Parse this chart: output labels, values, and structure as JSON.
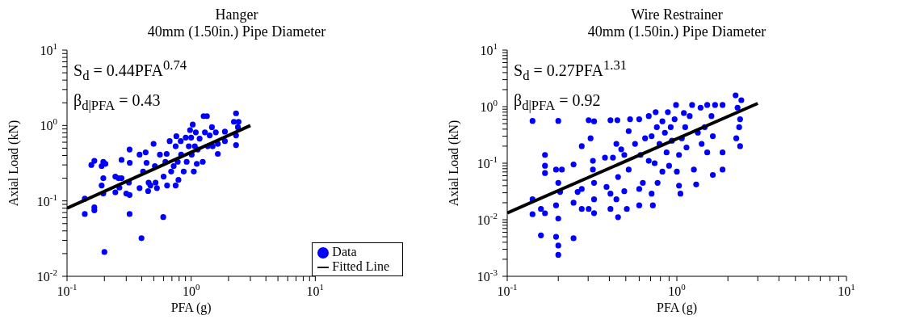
{
  "chart_data": [
    {
      "type": "scatter",
      "title": "Hanger",
      "subtitle": "40mm (1.50in.) Pipe Diameter",
      "xlabel": "PFA (g)",
      "ylabel": "Axial Load (kN)",
      "log": "xy",
      "grid": false,
      "legend": "bottom right",
      "annotations": [
        "S$_{d}$ = 0.44PFA$^{0.74}$",
        "β$_{d|PFA}$ = 0.43"
      ],
      "xlim": [
        0.1,
        10
      ],
      "ylim": [
        0.01,
        10
      ],
      "xticks": [
        {
          "value": 0.1,
          "label": "10$^{-1}$"
        },
        {
          "value": 0.2,
          "label": null
        },
        {
          "value": 0.3,
          "label": null
        },
        {
          "value": 0.4,
          "label": null
        },
        {
          "value": 0.5,
          "label": null
        },
        {
          "value": 0.6,
          "label": null
        },
        {
          "value": 0.7,
          "label": null
        },
        {
          "value": 0.8,
          "label": null
        },
        {
          "value": 0.9,
          "label": null
        },
        {
          "value": 1,
          "label": "10$^{0}$"
        },
        {
          "value": 2,
          "label": null
        },
        {
          "value": 3,
          "label": null
        },
        {
          "value": 4,
          "label": null
        },
        {
          "value": 5,
          "label": null
        },
        {
          "value": 6,
          "label": null
        },
        {
          "value": 7,
          "label": null
        },
        {
          "value": 8,
          "label": null
        },
        {
          "value": 9,
          "label": null
        },
        {
          "value": 10,
          "label": "10$^{1}$"
        }
      ],
      "yticks": [
        {
          "value": 0.01,
          "label": "10$^{-2}$"
        },
        {
          "value": 0.02,
          "label": null
        },
        {
          "value": 0.03,
          "label": null
        },
        {
          "value": 0.04,
          "label": null
        },
        {
          "value": 0.05,
          "label": null
        },
        {
          "value": 0.06,
          "label": null
        },
        {
          "value": 0.07,
          "label": null
        },
        {
          "value": 0.08,
          "label": null
        },
        {
          "value": 0.09,
          "label": null
        },
        {
          "value": 0.1,
          "label": "10$^{-1}$"
        },
        {
          "value": 0.2,
          "label": null
        },
        {
          "value": 0.3,
          "label": null
        },
        {
          "value": 0.4,
          "label": null
        },
        {
          "value": 0.5,
          "label": null
        },
        {
          "value": 0.6,
          "label": null
        },
        {
          "value": 0.7,
          "label": null
        },
        {
          "value": 0.8,
          "label": null
        },
        {
          "value": 0.9,
          "label": null
        },
        {
          "value": 1,
          "label": "10$^{0}$"
        },
        {
          "value": 2,
          "label": null
        },
        {
          "value": 3,
          "label": null
        },
        {
          "value": 4,
          "label": null
        },
        {
          "value": 5,
          "label": null
        },
        {
          "value": 6,
          "label": null
        },
        {
          "value": 7,
          "label": null
        },
        {
          "value": 8,
          "label": null
        },
        {
          "value": 9,
          "label": null
        },
        {
          "value": 10,
          "label": "10$^{1}$"
        }
      ],
      "series": [
        {
          "name": "Data",
          "marker": "circle",
          "color": "#0000ff",
          "x": [
            0.139,
            0.139,
            0.157,
            0.166,
            0.166,
            0.166,
            0.19,
            0.196,
            0.196,
            0.19,
            0.196,
            0.204,
            0.2,
            0.245,
            0.245,
            0.26,
            0.264,
            0.275,
            0.275,
            0.3,
            0.315,
            0.319,
            0.32,
            0.319,
            0.319,
            0.384,
            0.384,
            0.398,
            0.41,
            0.43,
            0.437,
            0.45,
            0.454,
            0.47,
            0.498,
            0.51,
            0.517,
            0.53,
            0.56,
            0.596,
            0.6,
            0.62,
            0.635,
            0.64,
            0.671,
            0.69,
            0.723,
            0.75,
            0.75,
            0.76,
            0.779,
            0.79,
            0.824,
            0.83,
            0.871,
            0.904,
            0.92,
            0.957,
            0.98,
            1.0,
            1.01,
            1.03,
            1.05,
            1.07,
            1.09,
            1.11,
            1.13,
            1.17,
            1.24,
            1.26,
            1.29,
            1.34,
            1.36,
            1.41,
            1.47,
            1.49,
            1.58,
            1.64,
            1.64,
            1.87,
            1.87,
            2.21,
            2.3,
            2.3,
            2.3,
            2.38,
            2.41
          ],
          "values": [
            0.107,
            0.067,
            0.3,
            0.34,
            0.082,
            0.075,
            0.29,
            0.33,
            0.2,
            0.16,
            0.125,
            0.31,
            0.021,
            0.21,
            0.13,
            0.2,
            0.15,
            0.35,
            0.2,
            0.125,
            0.175,
            0.48,
            0.32,
            0.067,
            0.12,
            0.41,
            0.148,
            0.032,
            0.245,
            0.44,
            0.32,
            0.135,
            0.175,
            0.16,
            0.57,
            0.29,
            0.175,
            0.148,
            0.41,
            0.061,
            0.21,
            0.33,
            0.42,
            0.16,
            0.62,
            0.245,
            0.29,
            0.53,
            0.16,
            0.72,
            0.33,
            0.19,
            0.62,
            0.41,
            0.245,
            0.69,
            0.33,
            0.53,
            0.87,
            0.69,
            0.41,
            1.03,
            0.245,
            0.53,
            0.81,
            0.31,
            0.48,
            0.67,
            0.33,
            1.33,
            0.81,
            1.33,
            0.53,
            0.74,
            0.95,
            0.53,
            0.81,
            0.42,
            0.57,
            0.83,
            0.62,
            1.12,
            1.45,
            0.74,
            0.55,
            0.95,
            1.12
          ]
        },
        {
          "name": "Fitted Line",
          "type": "line",
          "marker": "none",
          "color": "#000000",
          "line_style": "solid",
          "x": [
            0.1,
            3
          ],
          "values": [
            0.08,
            1.0
          ]
        }
      ]
    },
    {
      "type": "scatter",
      "title": "Wire Restrainer",
      "subtitle": "40mm (1.50in.) Pipe Diameter",
      "xlabel": "PFA (g)",
      "ylabel": "Axial Load (kN)",
      "log": "xy",
      "grid": false,
      "annotations": [
        "S$_{d}$ = 0.27PFA$^{1.31}$",
        "β$_{d|PFA}$ = 0.92"
      ],
      "xlim": [
        0.1,
        10
      ],
      "ylim": [
        0.001,
        10
      ],
      "xticks": [
        {
          "value": 0.1,
          "label": "10$^{-1}$"
        },
        {
          "value": 0.2,
          "label": null
        },
        {
          "value": 0.3,
          "label": null
        },
        {
          "value": 0.4,
          "label": null
        },
        {
          "value": 0.5,
          "label": null
        },
        {
          "value": 0.6,
          "label": null
        },
        {
          "value": 0.7,
          "label": null
        },
        {
          "value": 0.8,
          "label": null
        },
        {
          "value": 0.9,
          "label": null
        },
        {
          "value": 1,
          "label": "10$^{0}$"
        },
        {
          "value": 2,
          "label": null
        },
        {
          "value": 3,
          "label": null
        },
        {
          "value": 4,
          "label": null
        },
        {
          "value": 5,
          "label": null
        },
        {
          "value": 6,
          "label": null
        },
        {
          "value": 7,
          "label": null
        },
        {
          "value": 8,
          "label": null
        },
        {
          "value": 9,
          "label": null
        },
        {
          "value": 10,
          "label": "10$^{1}$"
        }
      ],
      "yticks": [
        {
          "value": 0.001,
          "label": "10$^{-3}$"
        },
        {
          "value": 0.002,
          "label": null
        },
        {
          "value": 0.003,
          "label": null
        },
        {
          "value": 0.004,
          "label": null
        },
        {
          "value": 0.005,
          "label": null
        },
        {
          "value": 0.006,
          "label": null
        },
        {
          "value": 0.007,
          "label": null
        },
        {
          "value": 0.008,
          "label": null
        },
        {
          "value": 0.009,
          "label": null
        },
        {
          "value": 0.01,
          "label": "10$^{-2}$"
        },
        {
          "value": 0.02,
          "label": null
        },
        {
          "value": 0.03,
          "label": null
        },
        {
          "value": 0.04,
          "label": null
        },
        {
          "value": 0.05,
          "label": null
        },
        {
          "value": 0.06,
          "label": null
        },
        {
          "value": 0.07,
          "label": null
        },
        {
          "value": 0.08,
          "label": null
        },
        {
          "value": 0.09,
          "label": null
        },
        {
          "value": 0.1,
          "label": "10$^{-1}$"
        },
        {
          "value": 0.2,
          "label": null
        },
        {
          "value": 0.3,
          "label": null
        },
        {
          "value": 0.4,
          "label": null
        },
        {
          "value": 0.5,
          "label": null
        },
        {
          "value": 0.6,
          "label": null
        },
        {
          "value": 0.7,
          "label": null
        },
        {
          "value": 0.8,
          "label": null
        },
        {
          "value": 0.9,
          "label": null
        },
        {
          "value": 1,
          "label": "10$^{0}$"
        },
        {
          "value": 2,
          "label": null
        },
        {
          "value": 3,
          "label": null
        },
        {
          "value": 4,
          "label": null
        },
        {
          "value": 5,
          "label": null
        },
        {
          "value": 6,
          "label": null
        },
        {
          "value": 7,
          "label": null
        },
        {
          "value": 8,
          "label": null
        },
        {
          "value": 9,
          "label": null
        },
        {
          "value": 10,
          "label": "10$^{1}$"
        }
      ],
      "series": [
        {
          "marker": "circle",
          "color": "#0000ff",
          "x": [
            0.141,
            0.141,
            0.141,
            0.158,
            0.158,
            0.167,
            0.167,
            0.167,
            0.167,
            0.194,
            0.194,
            0.194,
            0.2,
            0.2,
            0.2,
            0.2,
            0.2,
            0.205,
            0.21,
            0.246,
            0.246,
            0.246,
            0.26,
            0.275,
            0.275,
            0.275,
            0.302,
            0.31,
            0.32,
            0.32,
            0.325,
            0.325,
            0.325,
            0.325,
            0.302,
            0.377,
            0.385,
            0.406,
            0.406,
            0.406,
            0.42,
            0.44,
            0.44,
            0.446,
            0.45,
            0.45,
            0.47,
            0.49,
            0.49,
            0.507,
            0.52,
            0.52,
            0.53,
            0.567,
            0.6,
            0.6,
            0.6,
            0.611,
            0.63,
            0.65,
            0.683,
            0.683,
            0.71,
            0.71,
            0.722,
            0.74,
            0.75,
            0.762,
            0.77,
            0.79,
            0.822,
            0.822,
            0.85,
            0.87,
            0.885,
            0.9,
            0.92,
            0.935,
            0.97,
            0.989,
            1.0,
            1.03,
            1.03,
            1.05,
            1.07,
            1.1,
            1.12,
            1.14,
            1.19,
            1.23,
            1.26,
            1.3,
            1.33,
            1.38,
            1.4,
            1.46,
            1.51,
            1.51,
            1.6,
            1.63,
            1.63,
            1.68,
            1.86,
            1.86,
            1.86,
            2.22,
            2.24,
            2.28,
            2.33,
            2.36,
            2.36,
            2.4
          ],
          "values": [
            0.56,
            0.023,
            0.0125,
            0.0155,
            0.0053,
            0.14,
            0.09,
            0.067,
            0.013,
            0.077,
            0.018,
            0.005,
            0.045,
            0.56,
            0.0105,
            0.0035,
            0.0024,
            0.031,
            0.077,
            0.095,
            0.02,
            0.0047,
            0.031,
            0.2,
            0.0155,
            0.035,
            0.575,
            0.276,
            0.11,
            0.077,
            0.55,
            0.045,
            0.023,
            0.0131,
            0.0155,
            0.125,
            0.038,
            0.575,
            0.0155,
            0.029,
            0.125,
            0.22,
            0.023,
            0.575,
            0.0111,
            0.057,
            0.176,
            0.14,
            0.032,
            0.0155,
            0.37,
            0.077,
            0.6,
            0.22,
            0.6,
            0.018,
            0.035,
            0.14,
            0.045,
            0.276,
            0.11,
            0.68,
            0.029,
            0.3,
            0.018,
            0.1,
            0.8,
            0.434,
            0.045,
            0.22,
            0.55,
            0.071,
            0.346,
            0.155,
            0.8,
            0.09,
            0.434,
            0.25,
            0.6,
            1.07,
            0.071,
            0.14,
            0.04,
            0.029,
            0.276,
            0.77,
            0.434,
            0.19,
            0.68,
            1.07,
            0.077,
            0.042,
            0.346,
            0.96,
            0.22,
            0.434,
            0.155,
            1.07,
            0.68,
            0.062,
            0.3,
            1.07,
            1.07,
            0.155,
            0.077,
            1.58,
            0.276,
            0.96,
            0.434,
            0.6,
            0.2,
            1.3
          ]
        },
        {
          "type": "line",
          "marker": "none",
          "color": "#000000",
          "line_style": "solid",
          "x": [
            0.1,
            3
          ],
          "values": [
            0.0132,
            1.14
          ]
        }
      ]
    }
  ]
}
